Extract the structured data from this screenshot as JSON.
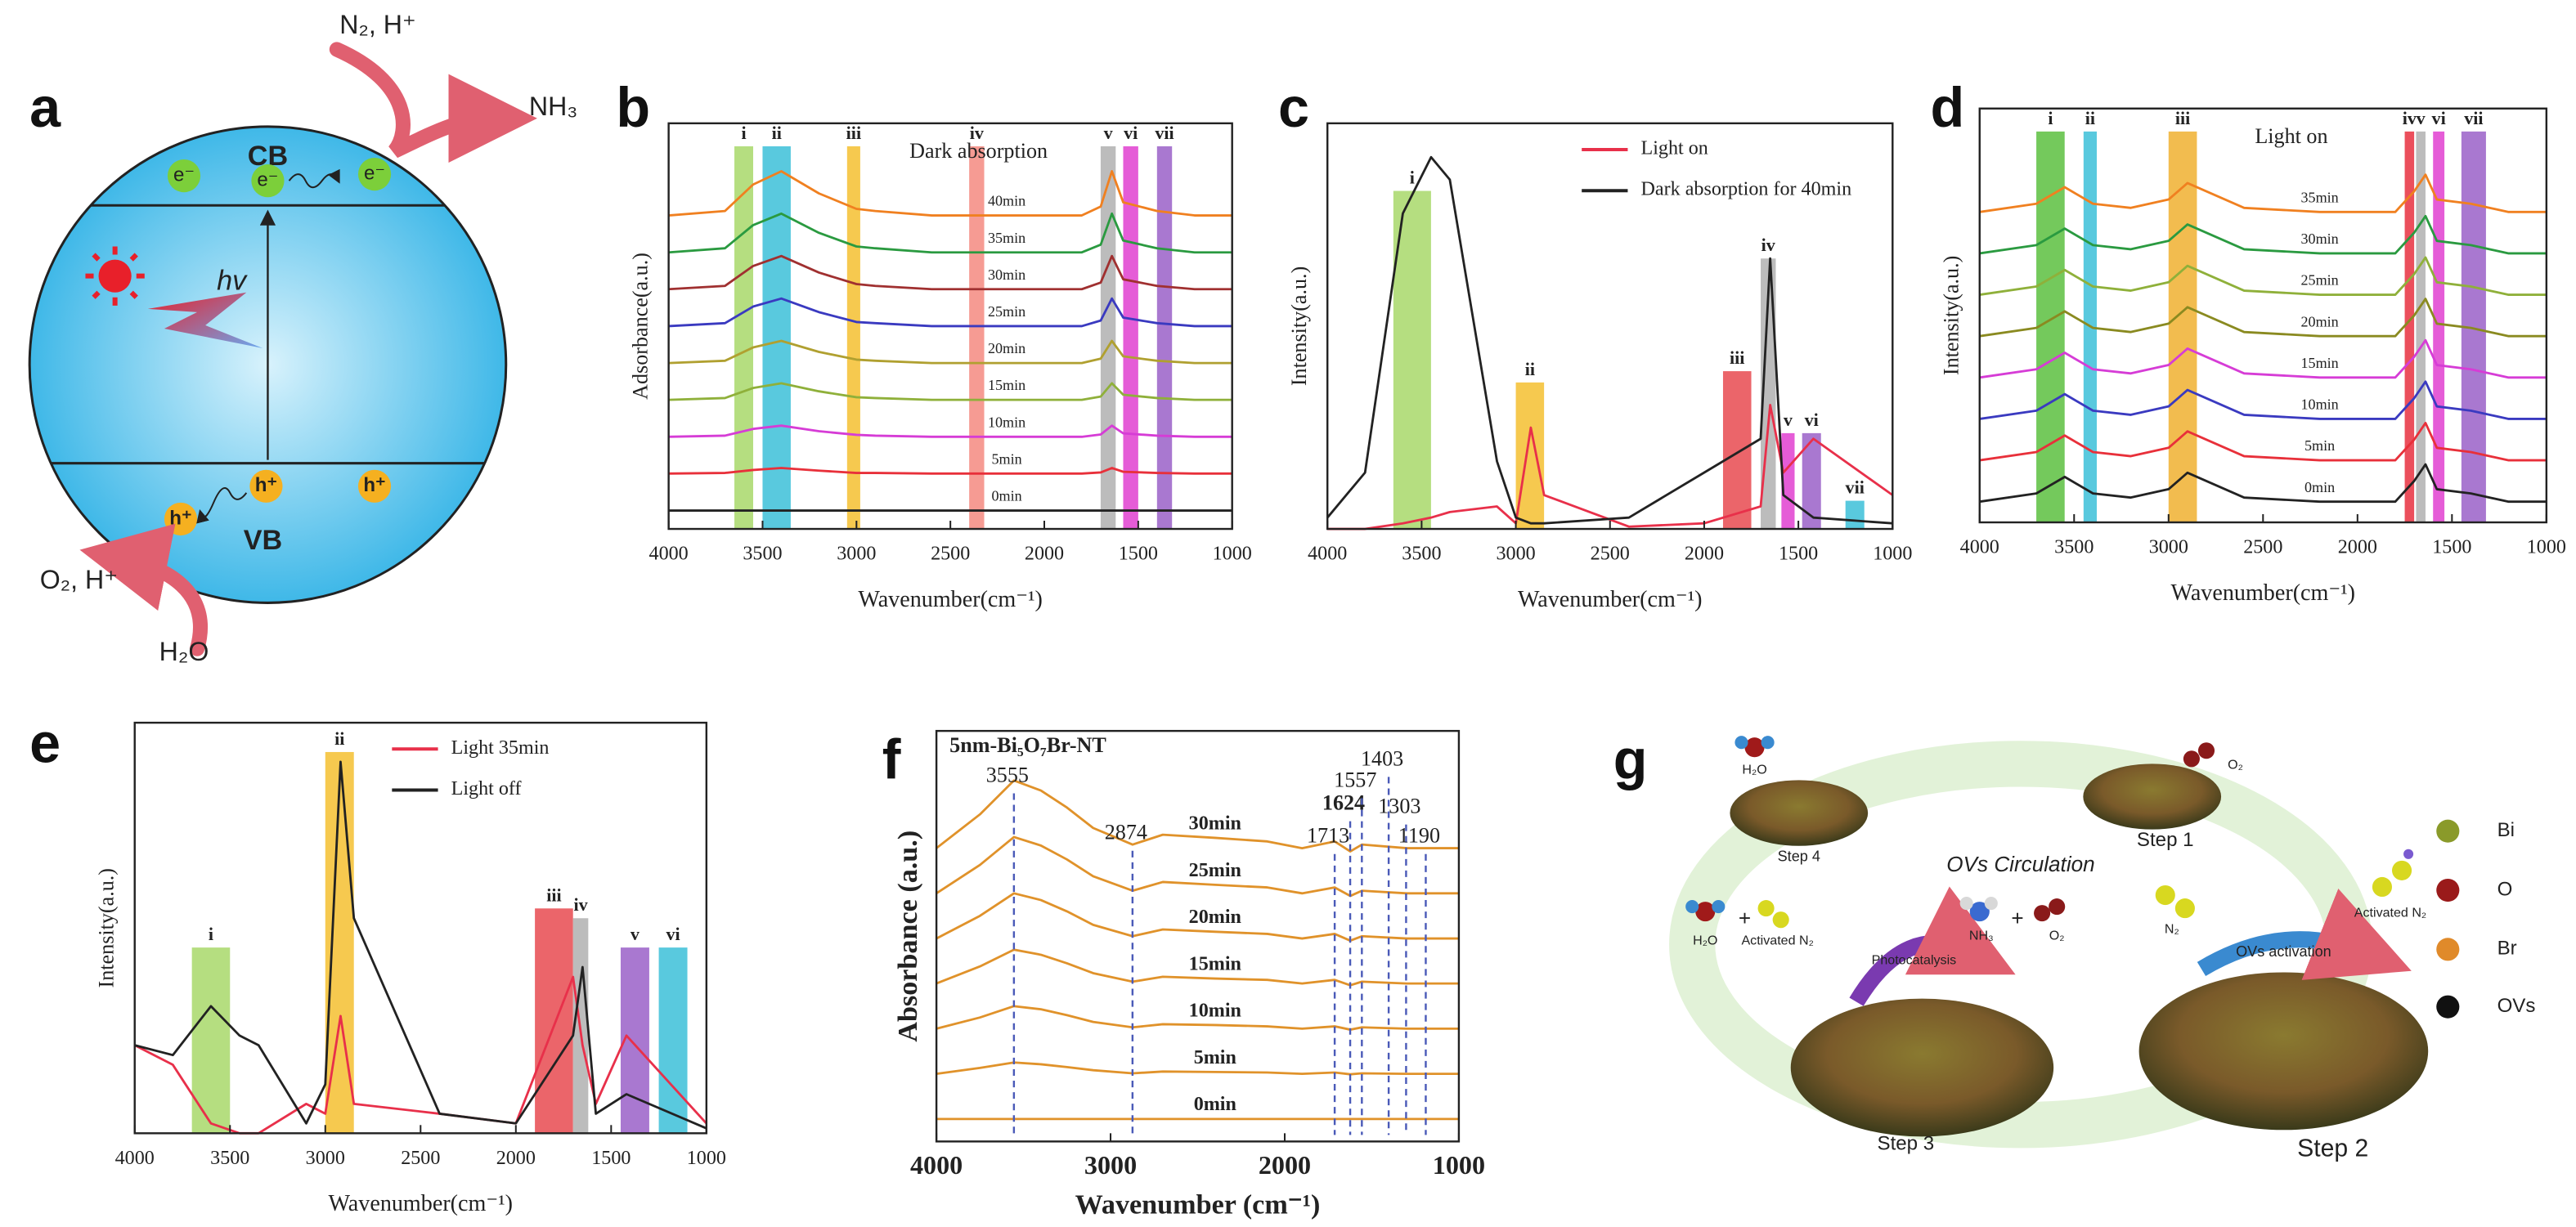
{
  "diagram_a": {
    "label": "a",
    "cb": "CB",
    "vb": "VB",
    "electrons": [
      "e⁻",
      "e⁻",
      "e⁻"
    ],
    "holes": [
      "h⁺",
      "h⁺",
      "h⁺"
    ],
    "light": "hv",
    "reactants_top": "N₂, H⁺",
    "product_top": "NH₃",
    "product_bottom": "O₂, H⁺",
    "reactant_bottom": "H₂O"
  },
  "chart_data": [
    {
      "type": "line",
      "label": "b",
      "annotation": "Dark absorption",
      "x_label": "Wavenumber(cm⁻¹)",
      "y_label": "Adsorbance(a.u.)",
      "xlim": [
        4000,
        1000
      ],
      "xticks": [
        4000,
        3500,
        3000,
        2500,
        2000,
        1500,
        1000
      ],
      "ylim": [
        -0.5,
        10.5
      ],
      "x": [
        4000,
        3700,
        3550,
        3400,
        3200,
        3000,
        2900,
        2600,
        2200,
        1800,
        1700,
        1640,
        1580,
        1400,
        1200,
        1000
      ],
      "bands": [
        {
          "label": "i",
          "x": [
            3650,
            3550
          ],
          "color": "#a8d86a"
        },
        {
          "label": "ii",
          "x": [
            3500,
            3350
          ],
          "color": "#3cc0d8"
        },
        {
          "label": "iii",
          "x": [
            3050,
            2980
          ],
          "color": "#f5c030"
        },
        {
          "label": "iv",
          "x": [
            2400,
            2320
          ],
          "color": "#f48a80"
        },
        {
          "label": "v",
          "x": [
            1700,
            1620
          ],
          "color": "#b0b0b0"
        },
        {
          "label": "vi",
          "x": [
            1580,
            1500
          ],
          "color": "#e040d0"
        },
        {
          "label": "vii",
          "x": [
            1400,
            1320
          ],
          "color": "#9a60c8"
        }
      ],
      "series": [
        {
          "name": "0min",
          "color": "#222222",
          "values": [
            0,
            0,
            0,
            0,
            0,
            0,
            0,
            0,
            0,
            0,
            0,
            0,
            0,
            0,
            0,
            0
          ]
        },
        {
          "name": "5min",
          "color": "#e8303a",
          "values": [
            1,
            1.02,
            1.1,
            1.15,
            1.08,
            1.02,
            1.02,
            1,
            1,
            1,
            1.03,
            1.15,
            1.05,
            1.02,
            1,
            1
          ]
        },
        {
          "name": "10min",
          "color": "#d63cd6",
          "values": [
            2,
            2.03,
            2.21,
            2.3,
            2.15,
            2.05,
            2.03,
            2,
            2,
            2,
            2.06,
            2.3,
            2.09,
            2.03,
            2,
            2
          ]
        },
        {
          "name": "15min",
          "color": "#8fb03a",
          "values": [
            3,
            3.05,
            3.32,
            3.45,
            3.23,
            3.07,
            3.05,
            3,
            3,
            3,
            3.09,
            3.45,
            3.14,
            3.05,
            3,
            3
          ]
        },
        {
          "name": "20min",
          "color": "#b0a030",
          "values": [
            4,
            4.06,
            4.42,
            4.6,
            4.3,
            4.09,
            4.06,
            4,
            4,
            4,
            4.12,
            4.6,
            4.18,
            4.06,
            4,
            4
          ]
        },
        {
          "name": "25min",
          "color": "#3a3ac0",
          "values": [
            5,
            5.08,
            5.53,
            5.75,
            5.38,
            5.11,
            5.08,
            5,
            5,
            5,
            5.15,
            5.75,
            5.23,
            5.08,
            5,
            5
          ]
        },
        {
          "name": "30min",
          "color": "#a03030",
          "values": [
            6,
            6.09,
            6.63,
            6.9,
            6.45,
            6.14,
            6.09,
            6,
            6,
            6,
            6.18,
            6.9,
            6.27,
            6.09,
            6,
            6
          ]
        },
        {
          "name": "35min",
          "color": "#2a9a40",
          "values": [
            7,
            7.11,
            7.74,
            8.05,
            7.53,
            7.16,
            7.11,
            7,
            7,
            7,
            7.21,
            8.05,
            7.32,
            7.11,
            7,
            7
          ]
        },
        {
          "name": "40min",
          "color": "#f08020",
          "values": [
            8,
            8.12,
            8.84,
            9.2,
            8.6,
            8.18,
            8.12,
            8,
            8,
            8,
            8.24,
            9.2,
            8.36,
            8.12,
            8,
            8
          ]
        }
      ]
    },
    {
      "type": "line",
      "label": "c",
      "legend": "top-right",
      "x_label": "Wavenumber(cm⁻¹)",
      "y_label": "Intensity(a.u.)",
      "xlim": [
        4000,
        1000
      ],
      "xticks": [
        4000,
        3500,
        3000,
        2500,
        2000,
        1500,
        1000
      ],
      "ylim": [
        0,
        3.6
      ],
      "x": [
        4000,
        3800,
        3600,
        3450,
        3350,
        3100,
        3000,
        2920,
        2850,
        2400,
        2000,
        1700,
        1650,
        1580,
        1420,
        1000
      ],
      "bands": [
        {
          "label": "i",
          "x": [
            3650,
            3450
          ],
          "top": 3.0,
          "color": "#a8d86a"
        },
        {
          "label": "ii",
          "x": [
            3000,
            2850
          ],
          "top": 1.3,
          "color": "#f5c030"
        },
        {
          "label": "iii",
          "x": [
            1900,
            1750
          ],
          "top": 1.4,
          "color": "#e84a50"
        },
        {
          "label": "iv",
          "x": [
            1700,
            1620
          ],
          "top": 2.4,
          "color": "#b0b0b0"
        },
        {
          "label": "v",
          "x": [
            1590,
            1520
          ],
          "top": 0.85,
          "color": "#e040d0"
        },
        {
          "label": "vi",
          "x": [
            1480,
            1380
          ],
          "top": 0.85,
          "color": "#9a60c8"
        },
        {
          "label": "vii",
          "x": [
            1250,
            1150
          ],
          "top": 0.25,
          "color": "#3cc0d8"
        }
      ],
      "series": [
        {
          "name": "Light on",
          "color": "#e8304a",
          "values": [
            0,
            0,
            0.05,
            0.1,
            0.15,
            0.2,
            0.05,
            0.9,
            0.3,
            0.02,
            0.05,
            0.2,
            1.1,
            0.5,
            0.8,
            0.3
          ]
        },
        {
          "name": "Dark absorption for 40min",
          "color": "#222222",
          "values": [
            0.1,
            0.5,
            2.8,
            3.3,
            3.1,
            0.6,
            0.1,
            0.05,
            0.05,
            0.1,
            0.5,
            0.8,
            2.4,
            0.3,
            0.1,
            0.05
          ]
        }
      ]
    },
    {
      "type": "line",
      "label": "d",
      "annotation": "Light on",
      "x_label": "Wavenumber(cm⁻¹)",
      "y_label": "Intensity(a.u.)",
      "xlim": [
        4000,
        1000
      ],
      "xticks": [
        4000,
        3500,
        3000,
        2500,
        2000,
        1500,
        1000
      ],
      "ylim": [
        -0.5,
        9.5
      ],
      "x": [
        4000,
        3700,
        3550,
        3400,
        3200,
        3000,
        2900,
        2600,
        2200,
        1800,
        1700,
        1640,
        1580,
        1400,
        1200,
        1000
      ],
      "bands": [
        {
          "label": "i",
          "x": [
            3700,
            3550
          ],
          "color": "#5cc040"
        },
        {
          "label": "ii",
          "x": [
            3450,
            3380
          ],
          "color": "#3cc0d8"
        },
        {
          "label": "iii",
          "x": [
            3000,
            2850
          ],
          "color": "#f0b030"
        },
        {
          "label": "iv",
          "x": [
            1750,
            1700
          ],
          "color": "#e83040"
        },
        {
          "label": "v",
          "x": [
            1690,
            1640
          ],
          "color": "#b0b0b0"
        },
        {
          "label": "vi",
          "x": [
            1600,
            1540
          ],
          "color": "#e040d0"
        },
        {
          "label": "vii",
          "x": [
            1450,
            1320
          ],
          "color": "#9a60c8"
        }
      ],
      "series": [
        {
          "name": "0min",
          "color": "#222222",
          "values": [
            0,
            0.2,
            0.6,
            0.2,
            0.1,
            0.3,
            0.7,
            0.1,
            0,
            0,
            0.5,
            0.9,
            0.3,
            0.2,
            0,
            0
          ]
        },
        {
          "name": "5min",
          "color": "#e8303a",
          "values": [
            1,
            1.2,
            1.6,
            1.2,
            1.1,
            1.3,
            1.7,
            1.1,
            1,
            1,
            1.5,
            1.9,
            1.3,
            1.2,
            1,
            1
          ]
        },
        {
          "name": "10min",
          "color": "#3a3ac0",
          "values": [
            2,
            2.2,
            2.6,
            2.2,
            2.1,
            2.3,
            2.7,
            2.1,
            2,
            2,
            2.5,
            2.9,
            2.3,
            2.2,
            2,
            2
          ]
        },
        {
          "name": "15min",
          "color": "#d63cd6",
          "values": [
            3,
            3.2,
            3.6,
            3.2,
            3.1,
            3.3,
            3.7,
            3.1,
            3,
            3,
            3.5,
            3.9,
            3.3,
            3.2,
            3,
            3
          ]
        },
        {
          "name": "20min",
          "color": "#8a8a20",
          "values": [
            4,
            4.2,
            4.6,
            4.2,
            4.1,
            4.3,
            4.7,
            4.1,
            4,
            4,
            4.5,
            4.9,
            4.3,
            4.2,
            4,
            4
          ]
        },
        {
          "name": "25min",
          "color": "#8fb03a",
          "values": [
            5,
            5.2,
            5.6,
            5.2,
            5.1,
            5.3,
            5.7,
            5.1,
            5,
            5,
            5.5,
            5.9,
            5.3,
            5.2,
            5,
            5
          ]
        },
        {
          "name": "30min",
          "color": "#2a9a40",
          "values": [
            6,
            6.2,
            6.6,
            6.2,
            6.1,
            6.3,
            6.7,
            6.1,
            6,
            6,
            6.5,
            6.9,
            6.3,
            6.2,
            6,
            6
          ]
        },
        {
          "name": "35min",
          "color": "#f08020",
          "values": [
            7,
            7.2,
            7.6,
            7.2,
            7.1,
            7.3,
            7.7,
            7.1,
            7,
            7,
            7.5,
            7.9,
            7.3,
            7.2,
            7,
            7
          ]
        }
      ]
    },
    {
      "type": "line",
      "label": "e",
      "legend": "top-right",
      "x_label": "Wavenumber(cm⁻¹)",
      "y_label": "Intensity(a.u.)",
      "xlim": [
        4000,
        1000
      ],
      "xticks": [
        4000,
        3500,
        3000,
        2500,
        2000,
        1500,
        1000
      ],
      "ylim": [
        0,
        4.2
      ],
      "x": [
        4000,
        3800,
        3600,
        3450,
        3350,
        3100,
        3000,
        2920,
        2850,
        2400,
        2000,
        1700,
        1650,
        1580,
        1420,
        1000
      ],
      "bands": [
        {
          "label": "i",
          "x": [
            3700,
            3500
          ],
          "top": 1.9,
          "color": "#a8d86a"
        },
        {
          "label": "ii",
          "x": [
            3000,
            2850
          ],
          "top": 3.9,
          "color": "#f5c030"
        },
        {
          "label": "iii",
          "x": [
            1900,
            1700
          ],
          "top": 2.3,
          "color": "#e84a50"
        },
        {
          "label": "iv",
          "x": [
            1700,
            1620
          ],
          "top": 2.2,
          "color": "#b0b0b0"
        },
        {
          "label": "v",
          "x": [
            1450,
            1300
          ],
          "top": 1.9,
          "color": "#9a60c8"
        },
        {
          "label": "vi",
          "x": [
            1250,
            1100
          ],
          "top": 1.9,
          "color": "#3cc0d8"
        }
      ],
      "series": [
        {
          "name": "Light 35min",
          "color": "#e8304a",
          "values": [
            0.9,
            0.7,
            0.1,
            0,
            0,
            0.3,
            0.2,
            1.2,
            0.3,
            0.2,
            0.1,
            1.6,
            0.9,
            0.3,
            1.0,
            0.1
          ]
        },
        {
          "name": "Light off",
          "color": "#222222",
          "values": [
            0.9,
            0.8,
            1.3,
            1.0,
            0.9,
            0.1,
            0.5,
            3.8,
            2.2,
            0.2,
            0.1,
            1.0,
            1.7,
            0.2,
            0.4,
            0.05
          ]
        }
      ]
    },
    {
      "type": "line",
      "label": "f",
      "title": "5nm-Bi₅O₇Br-NT",
      "x_label": "Wavenumber (cm⁻¹)",
      "y_label": "Absorbance (a.u.)",
      "xlim": [
        4000,
        1000
      ],
      "xticks": [
        4000,
        3000,
        2000,
        1000
      ],
      "ylim": [
        -0.5,
        8.6
      ],
      "x": [
        4000,
        3750,
        3555,
        3400,
        3250,
        3100,
        2874,
        2700,
        2400,
        2100,
        1900,
        1713,
        1624,
        1557,
        1300,
        1000
      ],
      "peaks": [
        3555,
        2874,
        1713,
        1624,
        1557,
        1403,
        1303,
        1190
      ],
      "peak_colors": [
        "#4a5ab8",
        "#4a5ab8",
        "#4a5ab8",
        "#3a9a20",
        "#4a5ab8",
        "#4a5ab8",
        "#4a5ab8",
        "#4a5ab8"
      ],
      "name_color": "#c0282a",
      "series": [
        {
          "name": "0min",
          "color": "#e0922a",
          "values": [
            0,
            0,
            0,
            0,
            0,
            0,
            0,
            0,
            0,
            0,
            0,
            0,
            0,
            0,
            0,
            0
          ]
        },
        {
          "name": "5min",
          "color": "#e0922a",
          "values": [
            1,
            1.13,
            1.25,
            1.21,
            1.15,
            1.08,
            1.01,
            1.05,
            1.04,
            1.03,
            1,
            1.03,
            0.99,
            1.01,
            1,
            1
          ]
        },
        {
          "name": "10min",
          "color": "#e0922a",
          "values": [
            2,
            2.25,
            2.5,
            2.43,
            2.3,
            2.15,
            2.03,
            2.1,
            2.08,
            2.05,
            2,
            2.05,
            1.98,
            2.03,
            2,
            2
          ]
        },
        {
          "name": "15min",
          "color": "#e0922a",
          "values": [
            3,
            3.38,
            3.75,
            3.64,
            3.45,
            3.23,
            3.04,
            3.15,
            3.11,
            3.08,
            3,
            3.08,
            2.96,
            3.04,
            3,
            3
          ]
        },
        {
          "name": "20min",
          "color": "#e0922a",
          "values": [
            4,
            4.5,
            5,
            4.85,
            4.6,
            4.3,
            4.05,
            4.2,
            4.15,
            4.1,
            4,
            4.1,
            3.95,
            4.05,
            4,
            4
          ]
        },
        {
          "name": "25min",
          "color": "#e0922a",
          "values": [
            5,
            5.63,
            6.25,
            6.06,
            5.75,
            5.38,
            5.06,
            5.25,
            5.19,
            5.13,
            5,
            5.13,
            4.94,
            5.06,
            5,
            5
          ]
        },
        {
          "name": "30min",
          "color": "#e0922a",
          "values": [
            6,
            6.75,
            7.5,
            7.28,
            6.9,
            6.45,
            6.08,
            6.3,
            6.23,
            6.15,
            6,
            6.15,
            5.93,
            6.08,
            6,
            6
          ]
        }
      ]
    }
  ],
  "diagram_g": {
    "label": "g",
    "steps": [
      "Step 1",
      "Step 2",
      "Step 3",
      "Step 4"
    ],
    "cycle": "OVs Circulation",
    "activation": "OVs activation",
    "photocatalysis": "Photocatalysis",
    "plus": "+",
    "species": [
      "H₂O",
      "O₂",
      "H₂O",
      "Activated N₂",
      "NH₃",
      "O₂",
      "N₂",
      "Activated N₂"
    ],
    "legend": [
      "Bi",
      "O",
      "Br",
      "OVs"
    ]
  }
}
